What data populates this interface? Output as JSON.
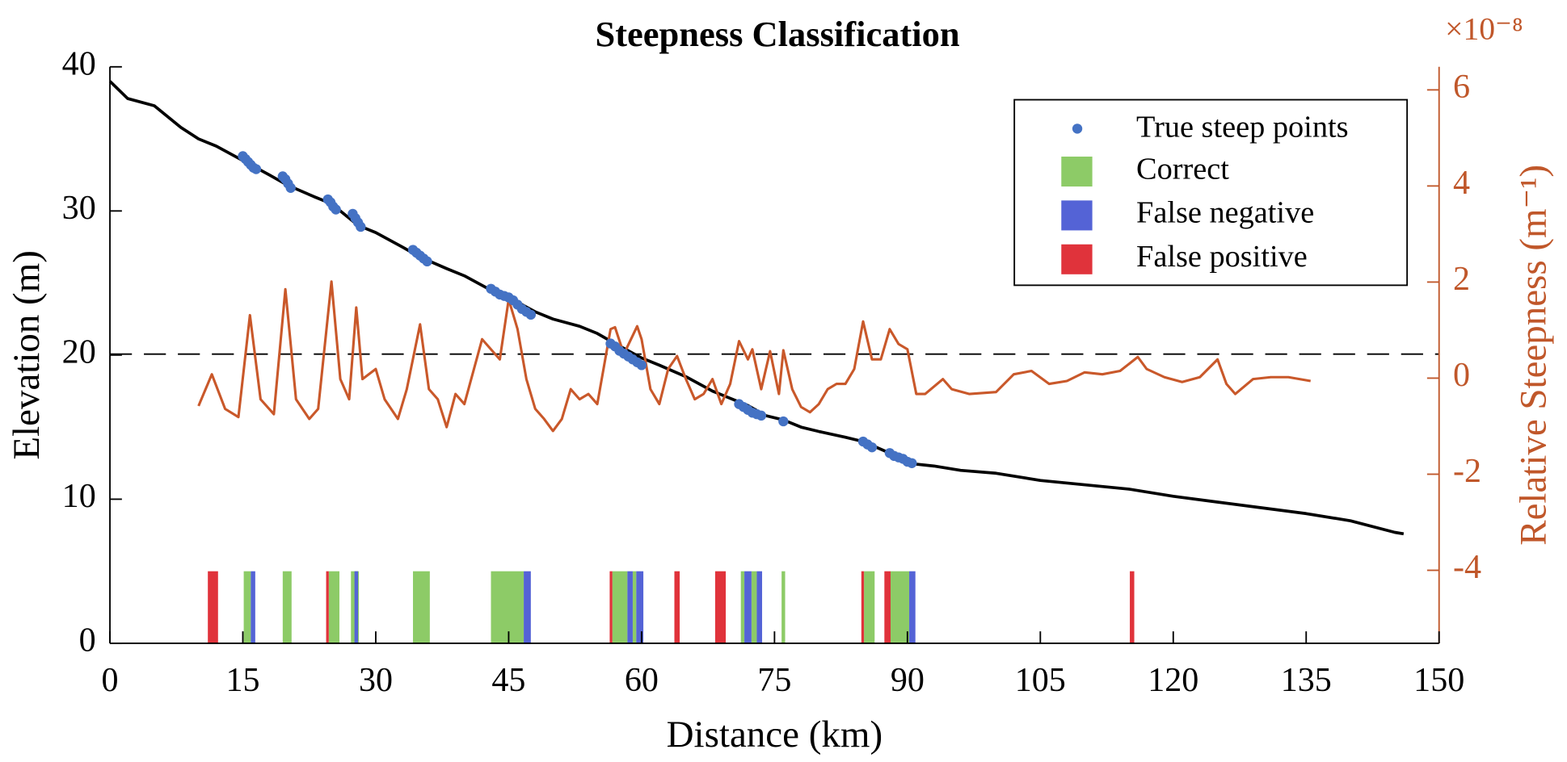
{
  "chart_data": {
    "type": "line",
    "title": "Steepness Classification",
    "xlabel": "Distance (km)",
    "ylabel": "Elevation (m)",
    "y2label": "Relative Steepness (m⁻¹)",
    "y2exponent": "×10⁻⁸",
    "xlim": [
      0,
      150
    ],
    "xticks": [
      0,
      15,
      30,
      45,
      60,
      75,
      90,
      105,
      120,
      135,
      150
    ],
    "ylim": [
      0,
      40
    ],
    "yticks": [
      0,
      10,
      20,
      30,
      40
    ],
    "y2lim": [
      -5.52,
      6.48
    ],
    "y2ticks": [
      -4,
      -2,
      0,
      2,
      4,
      6
    ],
    "y2color": "#c0572a",
    "legend": "upper right",
    "elevation": {
      "color": "#000000",
      "x": [
        0,
        2,
        5,
        8,
        10,
        12,
        15,
        18,
        20,
        23,
        25,
        28,
        30,
        33,
        35,
        38,
        40,
        43,
        45,
        48,
        50,
        53,
        55,
        57,
        60,
        62,
        65,
        68,
        70,
        72,
        74,
        76,
        78,
        80,
        83,
        85,
        88,
        90,
        93,
        96,
        100,
        105,
        110,
        115,
        120,
        125,
        130,
        135,
        140,
        145,
        146
      ],
      "values": [
        39,
        37.8,
        37.3,
        35.8,
        35,
        34.5,
        33.5,
        32.5,
        31.8,
        31,
        30.5,
        29,
        28.5,
        27.5,
        26.8,
        26,
        25.5,
        24.5,
        24,
        23,
        22.5,
        22,
        21.5,
        20.8,
        19.8,
        19.3,
        18.5,
        17.5,
        17,
        16.5,
        15.8,
        15.5,
        15,
        14.7,
        14.3,
        14,
        13.2,
        12.5,
        12.3,
        12,
        11.8,
        11.3,
        11,
        10.7,
        10.2,
        9.8,
        9.4,
        9,
        8.5,
        7.7,
        7.6
      ]
    },
    "steepness": {
      "color": "#c9582a",
      "axis": "y2",
      "x": [
        10,
        11.5,
        13,
        14.5,
        15.8,
        17,
        18.5,
        19.8,
        21,
        22.5,
        23.5,
        25,
        26,
        27,
        27.8,
        28.5,
        30,
        31,
        32.5,
        33.5,
        35,
        36,
        37,
        38,
        39,
        40,
        42,
        43,
        44,
        45,
        46,
        47,
        48,
        49,
        50,
        51,
        52,
        53,
        54,
        55,
        56.5,
        57,
        58,
        59.5,
        60,
        61,
        62,
        63,
        64,
        65,
        66,
        67,
        68,
        69,
        70,
        71,
        72,
        72.5,
        73.5,
        74.5,
        75.5,
        76,
        77,
        78,
        79,
        80,
        81,
        82,
        83,
        84,
        85,
        86,
        87,
        88,
        89,
        90,
        91,
        92,
        94,
        95,
        97,
        100,
        102,
        104,
        106,
        108,
        110,
        112,
        114,
        116,
        117,
        119,
        121,
        123,
        125,
        126,
        127,
        129,
        131,
        133,
        135.5
      ],
      "values": [
        -0.58,
        0.08,
        -0.64,
        -0.81,
        1.31,
        -0.44,
        -0.75,
        1.85,
        -0.44,
        -0.85,
        -0.64,
        2.01,
        -0.02,
        -0.44,
        1.47,
        -0.02,
        0.19,
        -0.44,
        -0.85,
        -0.23,
        1.12,
        -0.23,
        -0.44,
        -1.02,
        -0.33,
        -0.54,
        0.81,
        0.6,
        0.39,
        1.64,
        1.02,
        -0.02,
        -0.64,
        -0.85,
        -1.1,
        -0.85,
        -0.23,
        -0.44,
        -0.33,
        -0.54,
        1.02,
        1.06,
        0.5,
        1.08,
        0.81,
        -0.23,
        -0.54,
        0.19,
        0.46,
        -0.02,
        -0.44,
        -0.33,
        -0.02,
        -0.54,
        -0.12,
        0.77,
        0.39,
        0.6,
        -0.23,
        0.56,
        -0.33,
        0.58,
        -0.23,
        -0.6,
        -0.71,
        -0.54,
        -0.23,
        -0.12,
        -0.12,
        0.19,
        1.18,
        0.39,
        0.39,
        1.02,
        0.71,
        0.6,
        -0.33,
        -0.33,
        -0.02,
        -0.23,
        -0.33,
        -0.29,
        0.08,
        0.15,
        -0.12,
        -0.06,
        0.12,
        0.08,
        0.15,
        0.44,
        0.19,
        0.02,
        -0.08,
        0.02,
        0.39,
        -0.12,
        -0.33,
        -0.02,
        0.02,
        0.02,
        -0.06
      ]
    },
    "threshold": {
      "value": 0.5,
      "axis": "y2",
      "color": "#000000"
    },
    "steep_points": {
      "name": "True steep points",
      "color": "#4472c4",
      "x": [
        15,
        15.3,
        15.6,
        15.9,
        16.2,
        16.5,
        19.5,
        19.8,
        20.1,
        20.4,
        24.6,
        24.9,
        25.2,
        25.5,
        27.4,
        27.7,
        28,
        28.3,
        34.2,
        34.6,
        35,
        35.4,
        35.8,
        43,
        43.5,
        44,
        44.5,
        45,
        45.5,
        46,
        46.5,
        47,
        47.5,
        56.5,
        57,
        57.5,
        58,
        58.5,
        59,
        59.5,
        60,
        71,
        71.5,
        72,
        72.5,
        73,
        73.5,
        76,
        85,
        85.5,
        86,
        88,
        88.5,
        89,
        89.5,
        90,
        90.5
      ],
      "values": [
        33.8,
        33.6,
        33.4,
        33.2,
        33,
        32.9,
        32.4,
        32.2,
        31.9,
        31.6,
        30.8,
        30.6,
        30.3,
        30.1,
        29.8,
        29.5,
        29.2,
        28.9,
        27.3,
        27.1,
        26.9,
        26.7,
        26.5,
        24.6,
        24.4,
        24.2,
        24.1,
        24,
        23.8,
        23.5,
        23.2,
        23,
        22.8,
        20.8,
        20.6,
        20.3,
        20.1,
        19.9,
        19.7,
        19.5,
        19.3,
        16.6,
        16.4,
        16.2,
        16,
        15.9,
        15.8,
        15.4,
        14,
        13.8,
        13.6,
        13.2,
        13,
        12.9,
        12.8,
        12.6,
        12.5
      ]
    },
    "bar_height": 5,
    "classes": [
      {
        "name": "Correct",
        "color": "#8dcb67",
        "intervals": [
          [
            15.1,
            15.9
          ],
          [
            19.5,
            20.5
          ],
          [
            24.7,
            25.9
          ],
          [
            27.2,
            28.1
          ],
          [
            34.2,
            36.1
          ],
          [
            43,
            46.7
          ],
          [
            56.7,
            58.4
          ],
          [
            59,
            59.4
          ],
          [
            71.2,
            71.6
          ],
          [
            72.4,
            73
          ],
          [
            75.8,
            76.2
          ],
          [
            85.1,
            86.3
          ],
          [
            88.1,
            90.2
          ]
        ]
      },
      {
        "name": "False negative",
        "color": "#5463d6",
        "intervals": [
          [
            15.9,
            16.4
          ],
          [
            27.6,
            28
          ],
          [
            46.7,
            47.5
          ],
          [
            58.4,
            59
          ],
          [
            59.4,
            60.2
          ],
          [
            71.6,
            72.4
          ],
          [
            73,
            73.6
          ],
          [
            90.2,
            90.9
          ]
        ]
      },
      {
        "name": "False positive",
        "color": "#e0333b",
        "intervals": [
          [
            11.05,
            12.2
          ],
          [
            24.4,
            24.7
          ],
          [
            56.4,
            56.7
          ],
          [
            63.7,
            64.3
          ],
          [
            68.3,
            69.5
          ],
          [
            84.8,
            85.1
          ],
          [
            87.4,
            88.1
          ],
          [
            115.1,
            115.6
          ]
        ]
      }
    ]
  }
}
